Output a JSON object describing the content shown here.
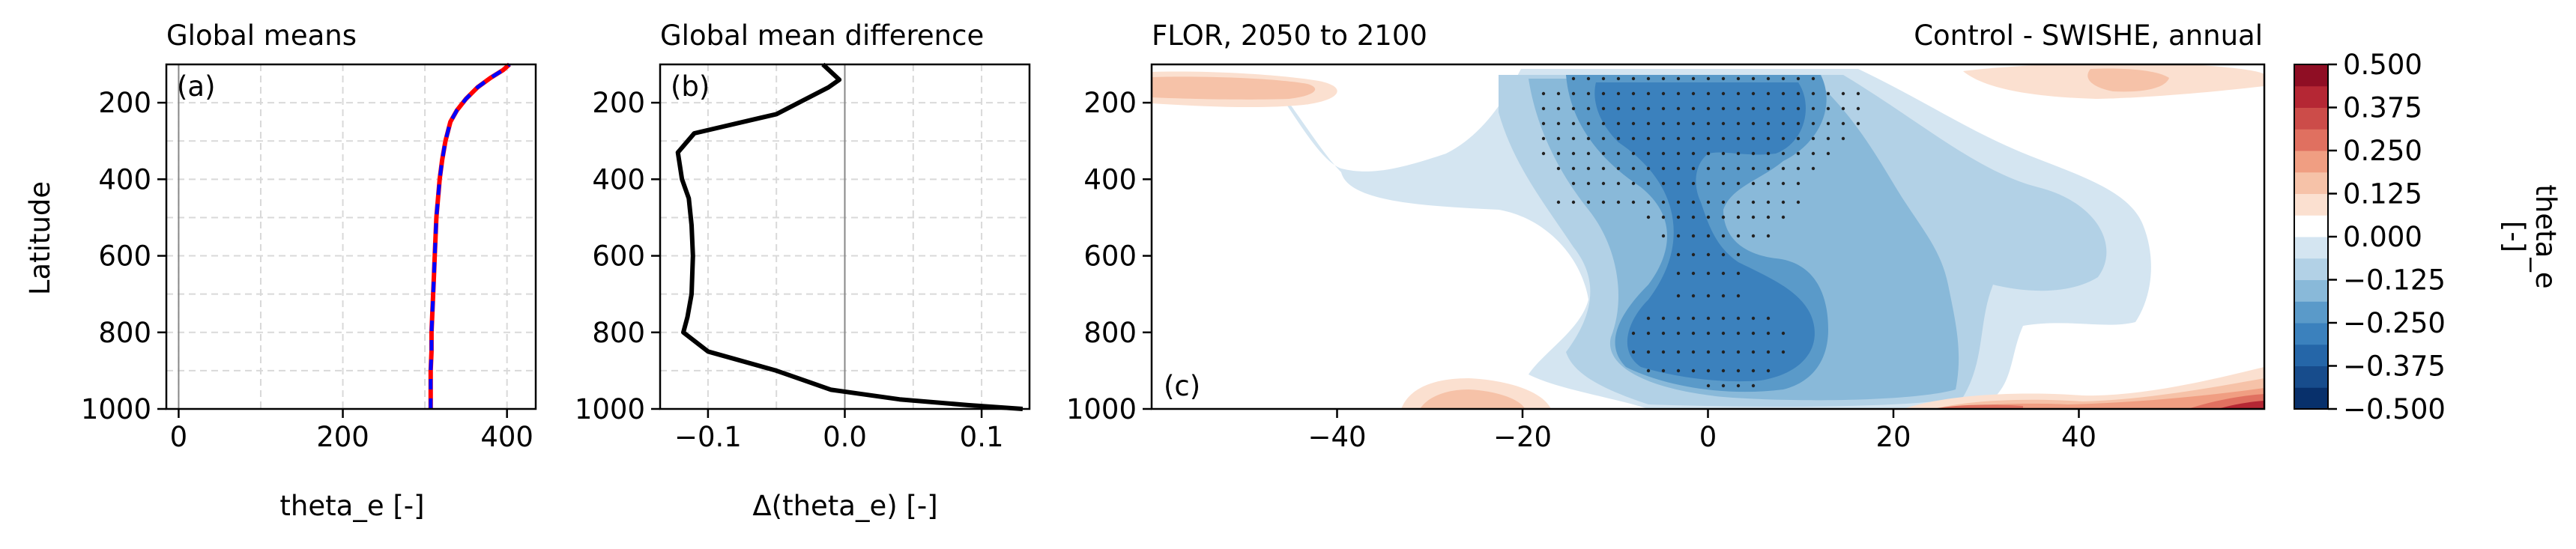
{
  "chart_data": [
    {
      "id": "a",
      "type": "line",
      "title": "Global means",
      "panel_label": "(a)",
      "xlabel": "theta_e [-]",
      "ylabel": "Latitude",
      "xlim": [
        -15,
        435
      ],
      "ylim": [
        1000,
        100
      ],
      "xticks": [
        0,
        200,
        400
      ],
      "yticks": [
        200,
        400,
        600,
        800,
        1000
      ],
      "grid": true,
      "series": [
        {
          "color": "#ff0000",
          "style": "solid",
          "x": [
            307,
            307,
            307,
            308,
            308,
            309,
            310,
            311,
            312,
            313,
            314,
            316,
            318,
            321,
            325,
            331,
            339,
            350,
            364,
            380,
            395,
            403
          ],
          "y": [
            1000,
            950,
            900,
            850,
            800,
            750,
            700,
            650,
            600,
            550,
            500,
            450,
            400,
            350,
            300,
            250,
            220,
            190,
            160,
            135,
            115,
            100
          ]
        },
        {
          "color": "#0000ff",
          "style": "dashed",
          "x": [
            307,
            307,
            307,
            308,
            308,
            309,
            310,
            311,
            312,
            313,
            314,
            316,
            318,
            321,
            325,
            331,
            339,
            350,
            364,
            380,
            395,
            403
          ],
          "y": [
            1000,
            950,
            900,
            850,
            800,
            750,
            700,
            650,
            600,
            550,
            500,
            450,
            400,
            350,
            300,
            250,
            220,
            190,
            160,
            135,
            115,
            100
          ]
        }
      ]
    },
    {
      "id": "b",
      "type": "line",
      "title": "Global mean difference",
      "panel_label": "(b)",
      "xlabel": "Δ(theta_e) [-]",
      "xlim": [
        -0.135,
        0.135
      ],
      "ylim": [
        1000,
        100
      ],
      "xticks": [
        -0.1,
        0.0,
        0.1
      ],
      "xtick_labels": [
        "−0.1",
        "0.0",
        "0.1"
      ],
      "yticks": [
        200,
        400,
        600,
        800,
        1000
      ],
      "grid": true,
      "series": [
        {
          "color": "#000000",
          "x": [
            -0.016,
            -0.004,
            -0.012,
            -0.05,
            -0.11,
            -0.122,
            -0.119,
            -0.114,
            -0.112,
            -0.111,
            -0.112,
            -0.115,
            -0.118,
            -0.1,
            -0.05,
            -0.01,
            0.04,
            0.09,
            0.13
          ],
          "y": [
            100,
            140,
            160,
            230,
            280,
            330,
            400,
            450,
            520,
            600,
            700,
            760,
            800,
            850,
            900,
            950,
            975,
            990,
            1000
          ]
        }
      ]
    },
    {
      "id": "c",
      "type": "heatmap",
      "title_left": "FLOR, 2050 to 2100",
      "title_right": "Control - SWISHE, annual",
      "panel_label": "(c)",
      "xlim": [
        -60,
        60
      ],
      "ylim": [
        1000,
        100
      ],
      "xticks": [
        -40,
        -20,
        0,
        20,
        40
      ],
      "xtick_labels": [
        "−40",
        "−20",
        "0",
        "20",
        "40"
      ],
      "yticks": [
        200,
        400,
        600,
        800,
        1000
      ],
      "levels": [
        -0.5,
        -0.4375,
        -0.375,
        -0.3125,
        -0.25,
        -0.1875,
        -0.125,
        -0.0625,
        0.0,
        0.0625,
        0.125,
        0.1875,
        0.25,
        0.3125,
        0.375,
        0.4375,
        0.5
      ],
      "colors": [
        "#08306b",
        "#174c8c",
        "#2566a8",
        "#3b81bd",
        "#5a9ac9",
        "#89b9d9",
        "#b2d1e6",
        "#d4e5f1",
        "#ffffff",
        "#fbe0d0",
        "#f6c2a8",
        "#f09e82",
        "#e07060",
        "#cc4c49",
        "#b52734",
        "#8f0e24"
      ],
      "significance_marker": "dots"
    },
    {
      "id": "colorbar",
      "type": "colorbar",
      "label": "theta_e\n[-]",
      "ticks": [
        0.5,
        0.375,
        0.25,
        0.125,
        0.0,
        -0.125,
        -0.25,
        -0.375,
        -0.5
      ],
      "tick_labels": [
        "0.500",
        "0.375",
        "0.250",
        "0.125",
        "0.000",
        "−0.125",
        "−0.250",
        "−0.375",
        "−0.500"
      ]
    }
  ]
}
